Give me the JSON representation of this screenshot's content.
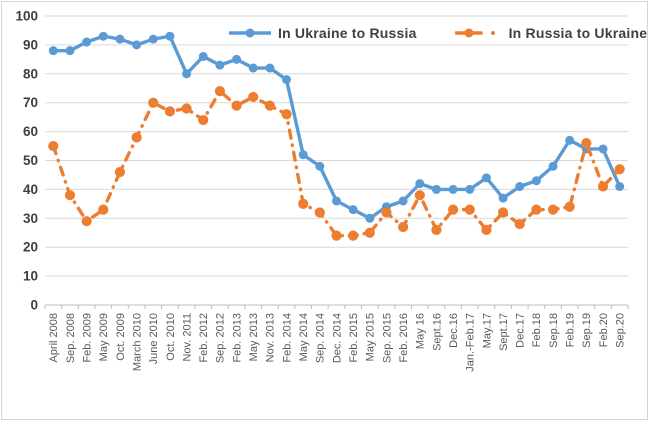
{
  "chart_data": {
    "type": "line",
    "title": "",
    "categories": [
      "April 2008",
      "Sep. 2008",
      "Feb. 2009",
      "May 2009",
      "Oct. 2009",
      "March 2010",
      "June 2010",
      "Oct. 2010",
      "Nov. 2011",
      "Feb. 2012",
      "Sep. 2012",
      "Feb. 2013",
      "May 2013",
      "Nov. 2013",
      "Feb. 2014",
      "May 2014",
      "Sep. 2014",
      "Dec. 2014",
      "Feb. 2015",
      "May 2015",
      "Sep. 2015",
      "Feb. 2016",
      "May 16",
      "Sept.16",
      "Dec.16",
      "Jan.-Feb.17",
      "May.17",
      "Sept.17",
      "Dec.17",
      "Feb.18",
      "Sep.18",
      "Feb.19",
      "Sep.19",
      "Feb.20",
      "Sep.20"
    ],
    "series": [
      {
        "name": "In Ukraine to Russia",
        "color": "#5B9BD5",
        "line_style": "solid",
        "marker": "circle",
        "values": [
          88,
          88,
          91,
          93,
          92,
          90,
          92,
          93,
          80,
          86,
          83,
          85,
          82,
          82,
          78,
          52,
          48,
          36,
          33,
          30,
          34,
          36,
          42,
          40,
          40,
          40,
          44,
          37,
          41,
          43,
          48,
          57,
          54,
          54,
          41
        ]
      },
      {
        "name": "In Russia to Ukraine",
        "color": "#ED7D31",
        "line_style": "dash-dot",
        "marker": "circle",
        "values": [
          55,
          38,
          29,
          33,
          46,
          58,
          70,
          67,
          68,
          64,
          74,
          69,
          72,
          69,
          66,
          35,
          32,
          24,
          24,
          25,
          32,
          27,
          38,
          26,
          33,
          33,
          26,
          32,
          28,
          33,
          33,
          34,
          56,
          41,
          47
        ]
      }
    ],
    "xlabel": "",
    "ylabel": "",
    "ylim": [
      0,
      100
    ],
    "yticks": [
      0,
      10,
      20,
      30,
      40,
      50,
      60,
      70,
      80,
      90,
      100
    ],
    "grid": true,
    "legend_position": "top",
    "colors": {
      "gridline": "#d9d9d9",
      "axis_line": "#bfbfbf",
      "y_tick_label": "#3f3f3f",
      "x_tick_label": "#595959",
      "legend_text": "#404040",
      "background": "#ffffff",
      "chart_border": "#d6d6d6"
    }
  }
}
